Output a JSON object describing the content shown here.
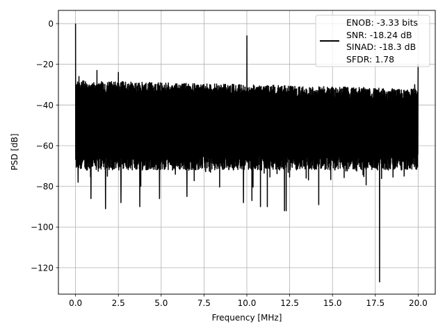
{
  "chart_data": {
    "type": "line",
    "xlabel": "Frequency [MHz]",
    "ylabel": "PSD [dB]",
    "xlim": [
      -1.0,
      21.0
    ],
    "ylim": [
      -133.0,
      6.5
    ],
    "xticks": [
      0.0,
      2.5,
      5.0,
      7.5,
      10.0,
      12.5,
      15.0,
      17.5,
      20.0
    ],
    "xtick_labels": [
      "0.0",
      "2.5",
      "5.0",
      "7.5",
      "10.0",
      "12.5",
      "15.0",
      "17.5",
      "20.0"
    ],
    "yticks": [
      0,
      -20,
      -40,
      -60,
      -80,
      -100,
      -120
    ],
    "ytick_labels": [
      "0",
      "−20",
      "−40",
      "−60",
      "−80",
      "−100",
      "−120"
    ],
    "grid": true,
    "legend_position": "top-right",
    "legend_lines": [
      "ENOB: -3.33 bits",
      "SNR: -18.24 dB",
      "SINAD: -18.3 dB",
      "SFDR: 1.78"
    ],
    "series": [
      {
        "color": "#000000",
        "noise_top_db": [
          -28,
          -29,
          -30,
          -31,
          -32
        ],
        "noise_bottom_db": [
          -72,
          -72,
          -72,
          -72,
          -72
        ],
        "peaks": [
          {
            "x": 0.0,
            "y": 0
          },
          {
            "x": 10.0,
            "y": -6
          },
          {
            "x": 20.0,
            "y": -20
          },
          {
            "x": 1.25,
            "y": -23
          },
          {
            "x": 2.5,
            "y": -24
          },
          {
            "x": 0.2,
            "y": -26
          },
          {
            "x": 15.0,
            "y": -32
          },
          {
            "x": 17.5,
            "y": -32
          },
          {
            "x": 19.8,
            "y": -30
          }
        ],
        "dips": [
          {
            "x": 17.75,
            "y": -127
          },
          {
            "x": 12.2,
            "y": -92
          },
          {
            "x": 12.3,
            "y": -92
          },
          {
            "x": 1.75,
            "y": -91
          },
          {
            "x": 3.75,
            "y": -90
          },
          {
            "x": 1.25,
            "y": -89
          },
          {
            "x": 2.65,
            "y": -88
          },
          {
            "x": 10.3,
            "y": -87
          },
          {
            "x": 9.8,
            "y": -88
          },
          {
            "x": 10.8,
            "y": -90
          },
          {
            "x": 11.2,
            "y": -90
          },
          {
            "x": 14.2,
            "y": -89
          },
          {
            "x": 17.5,
            "y": -89
          },
          {
            "x": 4.9,
            "y": -86
          },
          {
            "x": 0.9,
            "y": -86
          },
          {
            "x": 6.5,
            "y": -85
          },
          {
            "x": 0.15,
            "y": -78
          }
        ]
      }
    ]
  }
}
